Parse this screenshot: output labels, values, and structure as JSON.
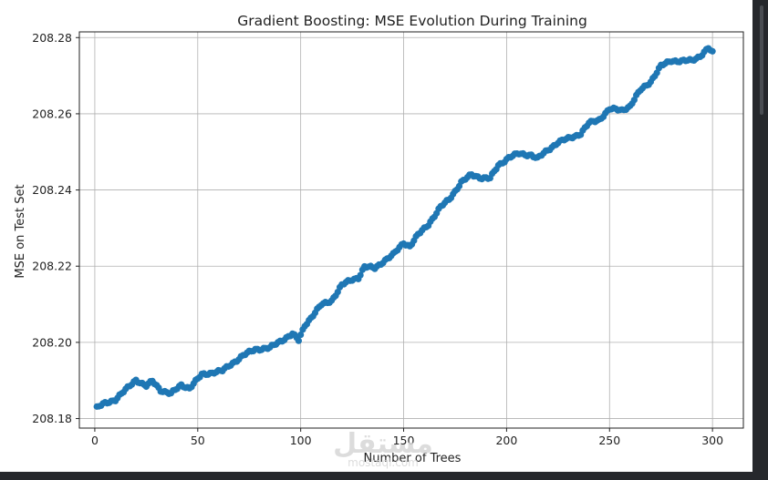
{
  "chart_data": {
    "type": "scatter",
    "title": "Gradient Boosting: MSE Evolution During Training",
    "xlabel": "Number of Trees",
    "ylabel": "MSE on Test Set",
    "xlim": [
      -7.5,
      315
    ],
    "ylim": [
      208.1775,
      208.2815
    ],
    "xticks": [
      0,
      50,
      100,
      150,
      200,
      250,
      300
    ],
    "xtick_labels": [
      "0",
      "50",
      "100",
      "150",
      "200",
      "250",
      "300"
    ],
    "yticks": [
      208.18,
      208.2,
      208.22,
      208.24,
      208.26,
      208.28
    ],
    "ytick_labels": [
      "208.18",
      "208.20",
      "208.22",
      "208.24",
      "208.26",
      "208.28"
    ],
    "grid": true,
    "marker_color": "#1f77b4",
    "anchors": [
      [
        1,
        208.1828
      ],
      [
        5,
        208.184
      ],
      [
        10,
        208.185
      ],
      [
        15,
        208.1875
      ],
      [
        20,
        208.1902
      ],
      [
        25,
        208.1885
      ],
      [
        28,
        208.1898
      ],
      [
        32,
        208.1875
      ],
      [
        37,
        208.1865
      ],
      [
        42,
        208.1888
      ],
      [
        46,
        208.188
      ],
      [
        52,
        208.1915
      ],
      [
        58,
        208.1922
      ],
      [
        62,
        208.1925
      ],
      [
        66,
        208.1942
      ],
      [
        72,
        208.1965
      ],
      [
        78,
        208.1982
      ],
      [
        85,
        208.1985
      ],
      [
        90,
        208.2003
      ],
      [
        96,
        208.2022
      ],
      [
        99,
        208.2005
      ],
      [
        102,
        208.2045
      ],
      [
        110,
        208.2098
      ],
      [
        115,
        208.211
      ],
      [
        120,
        208.215
      ],
      [
        125,
        208.2165
      ],
      [
        128,
        208.217
      ],
      [
        131,
        208.2198
      ],
      [
        136,
        208.2195
      ],
      [
        140,
        208.2212
      ],
      [
        145,
        208.223
      ],
      [
        150,
        208.2262
      ],
      [
        153,
        208.2252
      ],
      [
        157,
        208.2282
      ],
      [
        162,
        208.231
      ],
      [
        168,
        208.2355
      ],
      [
        172,
        208.2375
      ],
      [
        178,
        208.242
      ],
      [
        183,
        208.244
      ],
      [
        188,
        208.2432
      ],
      [
        192,
        208.243
      ],
      [
        196,
        208.2465
      ],
      [
        201,
        208.2485
      ],
      [
        206,
        208.2495
      ],
      [
        212,
        208.2492
      ],
      [
        215,
        208.2482
      ],
      [
        220,
        208.2505
      ],
      [
        225,
        208.2525
      ],
      [
        230,
        208.2535
      ],
      [
        236,
        208.2548
      ],
      [
        240,
        208.2575
      ],
      [
        245,
        208.2585
      ],
      [
        250,
        208.2612
      ],
      [
        256,
        208.261
      ],
      [
        260,
        208.262
      ],
      [
        265,
        208.2662
      ],
      [
        270,
        208.2685
      ],
      [
        275,
        208.2725
      ],
      [
        280,
        208.274
      ],
      [
        285,
        208.2738
      ],
      [
        290,
        208.274
      ],
      [
        294,
        208.2752
      ],
      [
        298,
        208.2772
      ],
      [
        300,
        208.276
      ]
    ],
    "points_count": 300
  },
  "watermark": {
    "arabic": "مستقل",
    "latin": "mostaql.com"
  }
}
